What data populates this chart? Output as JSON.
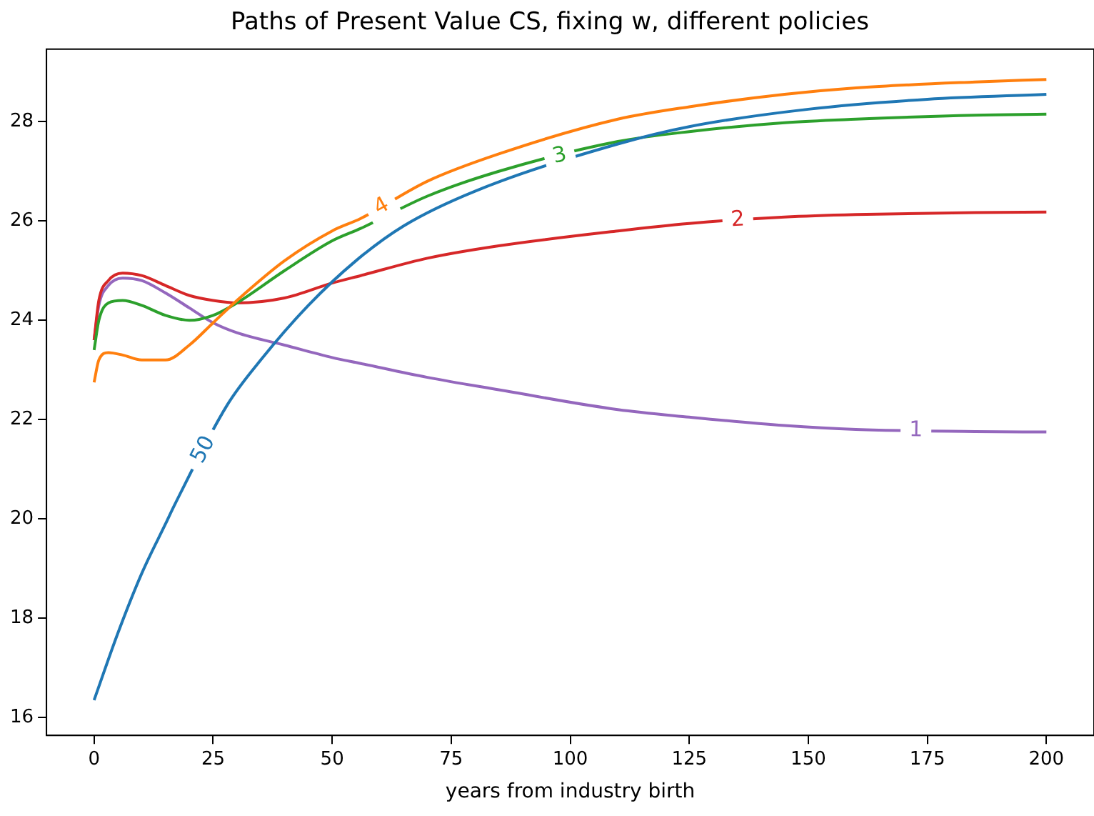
{
  "chart_data": {
    "type": "line",
    "title": "Paths of Present Value CS, fixing w, different policies",
    "xlabel": "years from industry birth",
    "x": [
      0,
      1,
      3,
      6,
      10,
      15,
      20,
      25,
      30,
      40,
      50,
      56,
      70,
      85,
      110,
      125,
      145,
      160,
      185,
      200
    ],
    "series": [
      {
        "name": "50",
        "color": "#1f77b4",
        "x": [
          0,
          5,
          10,
          15,
          17,
          28,
          35,
          45,
          55,
          65,
          80,
          110,
          125,
          150,
          175,
          200
        ],
        "values": [
          16.35,
          17.7,
          18.9,
          19.9,
          20.3,
          22.3,
          23.2,
          24.3,
          25.2,
          25.9,
          26.6,
          27.55,
          27.9,
          28.25,
          28.45,
          28.55
        ]
      },
      {
        "name": "4",
        "color": "#ff7f0e",
        "values": [
          22.75,
          23.2,
          23.35,
          23.3,
          23.2,
          23.2,
          23.5,
          23.95,
          24.4,
          25.2,
          25.8,
          26.05,
          26.8,
          27.35,
          28.05,
          28.3,
          28.55,
          28.68,
          28.8,
          28.85
        ]
      },
      {
        "name": "3",
        "color": "#2ca02c",
        "values": [
          23.4,
          24.0,
          24.35,
          24.4,
          24.3,
          24.1,
          24.0,
          24.1,
          24.35,
          25.0,
          25.6,
          25.85,
          26.5,
          27.0,
          27.6,
          27.8,
          27.98,
          28.05,
          28.13,
          28.15
        ]
      },
      {
        "name": "2",
        "color": "#d62728",
        "values": [
          23.6,
          24.4,
          24.8,
          24.95,
          24.9,
          24.7,
          24.5,
          24.4,
          24.35,
          24.45,
          24.75,
          24.9,
          25.25,
          25.5,
          25.8,
          25.95,
          26.08,
          26.13,
          26.17,
          26.18
        ]
      },
      {
        "name": "1",
        "color": "#9467bd",
        "values": [
          23.6,
          24.3,
          24.7,
          24.85,
          24.8,
          24.55,
          24.25,
          23.95,
          23.75,
          23.5,
          23.25,
          23.13,
          22.85,
          22.6,
          22.2,
          22.05,
          21.88,
          21.8,
          21.76,
          21.75
        ]
      }
    ],
    "xlim": [
      -10,
      210
    ],
    "xticks": [
      0,
      25,
      50,
      75,
      100,
      125,
      150,
      175,
      200
    ],
    "ylim": [
      15.64,
      29.46
    ],
    "yticks": [
      16,
      18,
      20,
      22,
      24,
      26,
      28
    ],
    "grid": false,
    "legend": false,
    "marker": "none",
    "line_style": "solid"
  }
}
